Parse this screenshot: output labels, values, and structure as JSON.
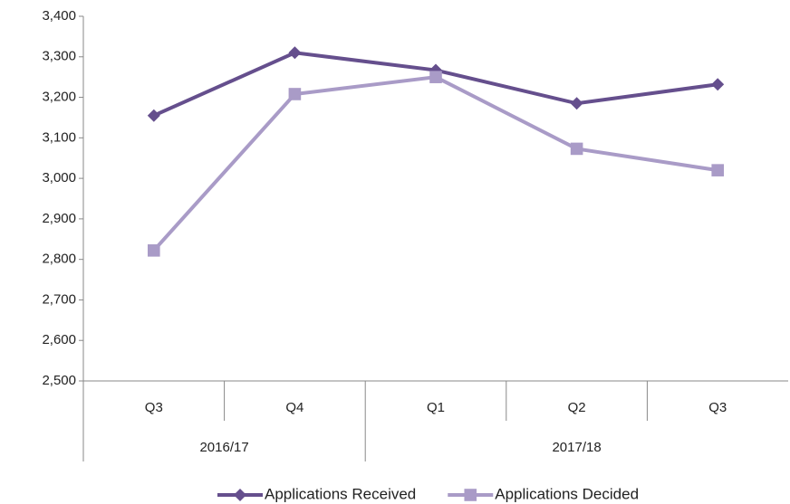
{
  "chart_data": {
    "type": "line",
    "category_groups": [
      {
        "name": "2016/17",
        "categories": [
          "Q3",
          "Q4"
        ]
      },
      {
        "name": "2017/18",
        "categories": [
          "Q1",
          "Q2",
          "Q3"
        ]
      }
    ],
    "series": [
      {
        "name": "Applications Received",
        "color": "#654f8d",
        "marker": "diamond",
        "values": [
          3155,
          3310,
          3267,
          3185,
          3232
        ]
      },
      {
        "name": "Applications Decided",
        "color": "#a99bc7",
        "marker": "square",
        "values": [
          2822,
          3208,
          3250,
          3073,
          3020
        ]
      }
    ],
    "ylim": [
      2500,
      3400
    ],
    "yticks": [
      {
        "value": 2500,
        "label": "2,500"
      },
      {
        "value": 2600,
        "label": "2,600"
      },
      {
        "value": 2700,
        "label": "2,700"
      },
      {
        "value": 2800,
        "label": "2,800"
      },
      {
        "value": 2900,
        "label": "2,900"
      },
      {
        "value": 3000,
        "label": "3,000"
      },
      {
        "value": 3100,
        "label": "3,100"
      },
      {
        "value": 3200,
        "label": "3,200"
      },
      {
        "value": 3300,
        "label": "3,300"
      },
      {
        "value": 3400,
        "label": "3,400"
      }
    ],
    "grid": false,
    "legend": "bottom"
  }
}
